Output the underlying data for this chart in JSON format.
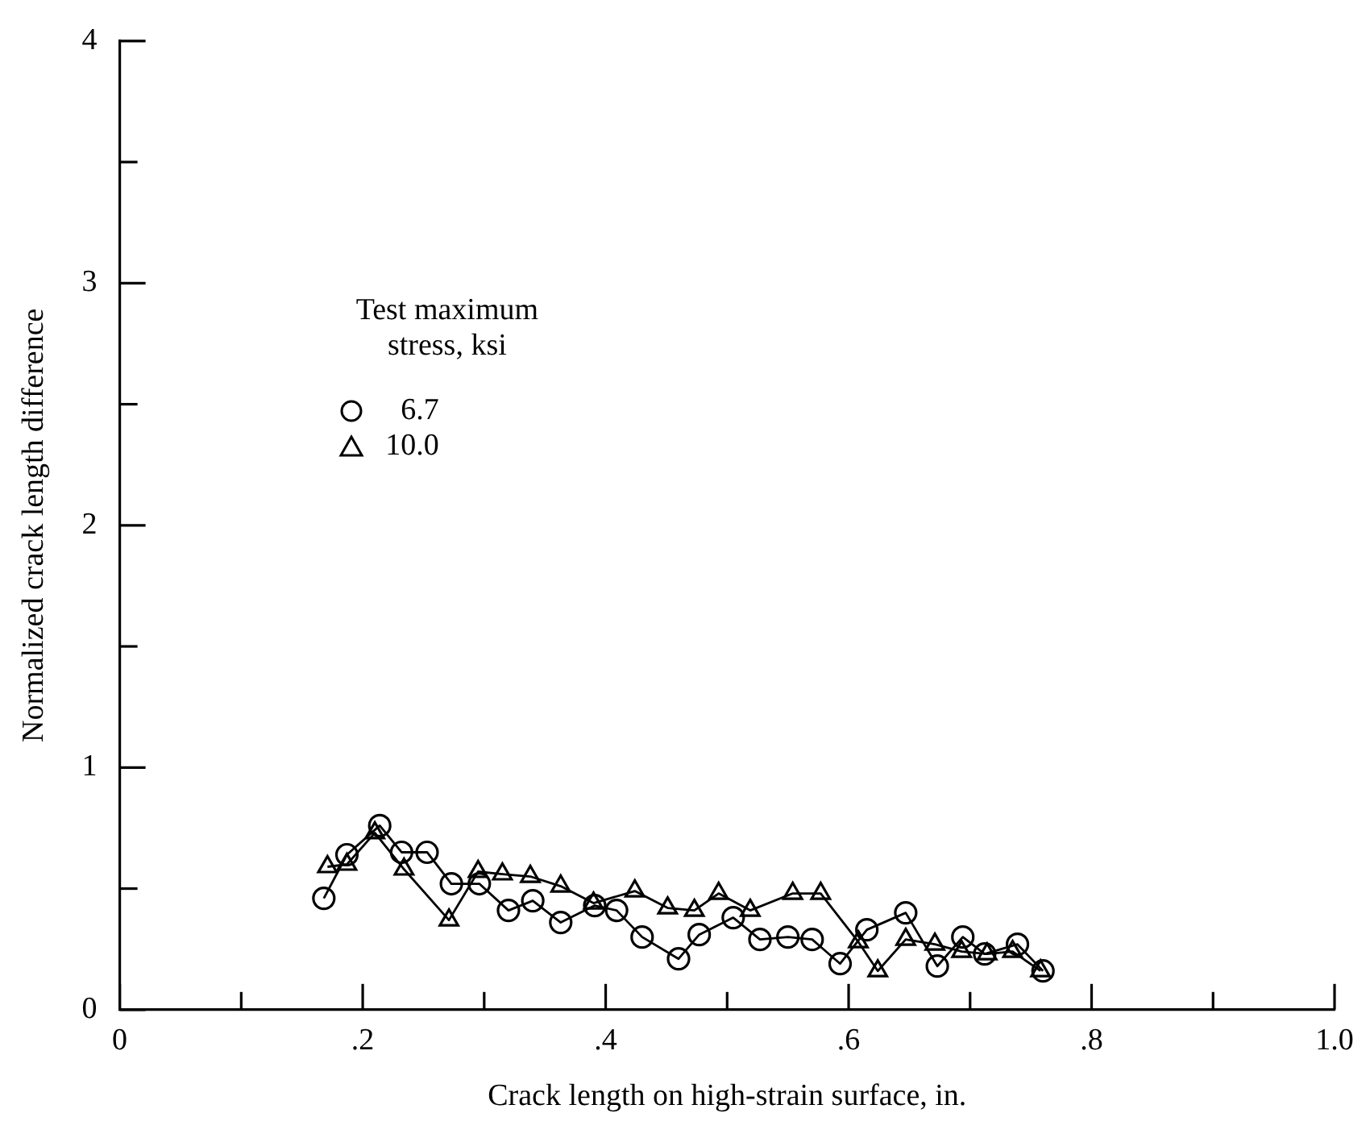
{
  "chart_data": {
    "type": "line",
    "xlabel": "Crack length on high-strain surface, in.",
    "ylabel": "Normalized crack length difference",
    "legend_title": "Test maximum stress, ksi",
    "legend": "top left",
    "grid": false,
    "xlim": [
      0,
      1.0
    ],
    "xticks": [
      0,
      {
        "value": 0.1,
        "label": null
      },
      {
        "value": 0.2,
        "label": ".2"
      },
      {
        "value": 0.3,
        "label": null
      },
      {
        "value": 0.4,
        "label": ".4"
      },
      {
        "value": 0.5,
        "label": null
      },
      {
        "value": 0.6,
        "label": ".6"
      },
      {
        "value": 0.7,
        "label": null
      },
      {
        "value": 0.8,
        "label": ".8"
      },
      {
        "value": 0.9,
        "label": null
      },
      {
        "value": 1.0,
        "label": "1.0"
      }
    ],
    "ylim": [
      0,
      4
    ],
    "yticks": [
      0,
      {
        "value": 0.5,
        "label": null
      },
      1,
      {
        "value": 1.5,
        "label": null
      },
      2,
      {
        "value": 2.5,
        "label": null
      },
      3,
      {
        "value": 3.5,
        "label": null
      },
      4
    ],
    "series": [
      {
        "name": "6.7",
        "color": "#000000",
        "marker": "circle",
        "x": [
          0.168,
          0.187,
          0.214,
          0.232,
          0.253,
          0.273,
          0.296,
          0.32,
          0.34,
          0.363,
          0.391,
          0.409,
          0.43,
          0.46,
          0.477,
          0.505,
          0.527,
          0.55,
          0.57,
          0.593,
          0.615,
          0.647,
          0.673,
          0.694,
          0.712,
          0.739,
          0.76
        ],
        "values": [
          0.46,
          0.64,
          0.76,
          0.65,
          0.65,
          0.52,
          0.52,
          0.41,
          0.45,
          0.36,
          0.43,
          0.41,
          0.3,
          0.21,
          0.31,
          0.38,
          0.29,
          0.3,
          0.29,
          0.19,
          0.33,
          0.4,
          0.18,
          0.3,
          0.23,
          0.27,
          0.16
        ]
      },
      {
        "name": "10.0",
        "color": "#000000",
        "marker": "triangle",
        "x": [
          0.171,
          0.187,
          0.21,
          0.234,
          0.271,
          0.295,
          0.315,
          0.338,
          0.363,
          0.39,
          0.424,
          0.451,
          0.473,
          0.493,
          0.519,
          0.554,
          0.577,
          0.608,
          0.624,
          0.647,
          0.671,
          0.693,
          0.714,
          0.735,
          0.758
        ],
        "values": [
          0.59,
          0.6,
          0.73,
          0.58,
          0.37,
          0.57,
          0.56,
          0.55,
          0.51,
          0.44,
          0.49,
          0.42,
          0.41,
          0.48,
          0.41,
          0.48,
          0.48,
          0.28,
          0.16,
          0.29,
          0.27,
          0.24,
          0.23,
          0.24,
          0.16
        ]
      }
    ]
  }
}
